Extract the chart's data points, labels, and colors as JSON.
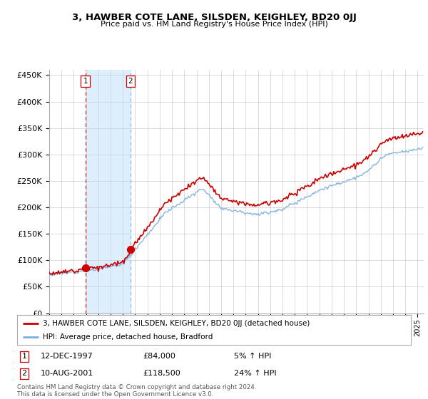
{
  "title": "3, HAWBER COTE LANE, SILSDEN, KEIGHLEY, BD20 0JJ",
  "subtitle": "Price paid vs. HM Land Registry's House Price Index (HPI)",
  "sale1_price": 84000,
  "sale1_label": "12-DEC-1997",
  "sale1_hpi_text": "5% ↑ HPI",
  "sale2_price": 118500,
  "sale2_label": "10-AUG-2001",
  "sale2_hpi_text": "24% ↑ HPI",
  "legend_line1": "3, HAWBER COTE LANE, SILSDEN, KEIGHLEY, BD20 0JJ (detached house)",
  "legend_line2": "HPI: Average price, detached house, Bradford",
  "footer": "Contains HM Land Registry data © Crown copyright and database right 2024.\nThis data is licensed under the Open Government Licence v3.0.",
  "line_color": "#cc0000",
  "hpi_color": "#7aaddc",
  "shade_color": "#ddeeff",
  "sale1_year": 1997.958,
  "sale2_year": 2001.625,
  "ylim": [
    0,
    460000
  ],
  "yticks": [
    0,
    50000,
    100000,
    150000,
    200000,
    250000,
    300000,
    350000,
    400000,
    450000
  ],
  "xlim_start": 1995.0,
  "xlim_end": 2025.5
}
